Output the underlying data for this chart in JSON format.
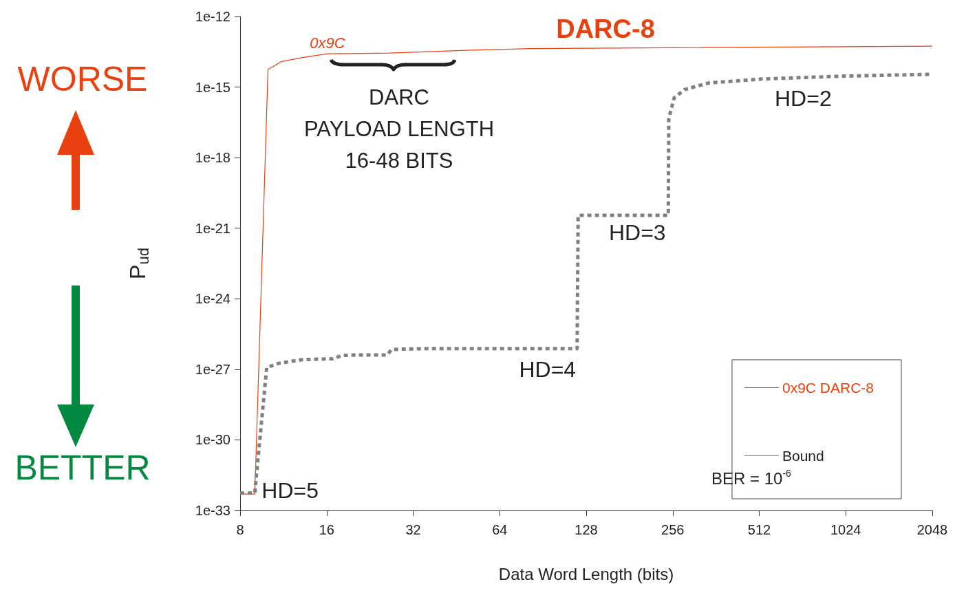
{
  "chart_data": {
    "type": "line",
    "xlabel": "Data Word Length (bits)",
    "ylabel": "P$_{ud}$",
    "x": [
      8,
      9,
      10,
      11.1,
      13.2,
      16.1,
      26.6,
      50.9,
      81,
      2048
    ],
    "log": "xy",
    "xlim": [
      8,
      2048
    ],
    "xticks": [
      8,
      16,
      32,
      64,
      128,
      256,
      512,
      1024,
      2048
    ],
    "ylim": [
      1e-33,
      1e-12
    ],
    "yticks": [
      {
        "value": 1e-33,
        "label": "1e-33"
      },
      {
        "value": 1e-30,
        "label": "1e-30"
      },
      {
        "value": 1e-27,
        "label": "1e-27"
      },
      {
        "value": 1e-24,
        "label": "1e-24"
      },
      {
        "value": 1e-21,
        "label": "1e-21"
      },
      {
        "value": 1e-18,
        "label": "1e-18"
      },
      {
        "value": 1e-15,
        "label": "1e-15"
      },
      {
        "value": 1e-12,
        "label": "1e-12"
      }
    ],
    "grid": false,
    "legend": "bottom right",
    "marker": "none",
    "series": [
      {
        "name": "0x9C DARC-8",
        "color": "#e8400e",
        "line_style": "solid",
        "values": [
          5e-33,
          5e-33,
          5.6e-15,
          1.2e-14,
          1.8e-14,
          2.6e-14,
          2.8e-14,
          3.7e-14,
          4.3e-14,
          5.5e-14
        ]
      },
      {
        "name": "Bound",
        "color": "#808080",
        "line_style": "dashed",
        "x": [
          8,
          9,
          9.1,
          9.9,
          10.9,
          13.2,
          16.8,
          18.1,
          20.8,
          26,
          26.9,
          36,
          119,
          120,
          247,
          248,
          259,
          282,
          342,
          523,
          983,
          2048
        ],
        "values": [
          5.5e-33,
          5.5e-33,
          2.5e-32,
          1.2e-27,
          1.8e-27,
          2.6e-27,
          2.8e-27,
          3.9e-27,
          4.1e-27,
          4.1e-27,
          7e-27,
          7.6e-27,
          7.6e-27,
          3.5e-21,
          3.5e-21,
          4.7e-17,
          3.5e-16,
          7.9e-16,
          1.5e-15,
          2.2e-15,
          2.9e-15,
          3.5e-15
        ]
      }
    ],
    "annotations": [
      "DARC-8",
      {
        "text": "0x9C",
        "x": 16.1,
        "y": 2.6e-14
      },
      "DARC\nPAYLOAD LENGTH\n16-48 BITS",
      {
        "text": "HD=5",
        "x": 9,
        "y": 5.5e-33
      },
      {
        "text": "HD=4",
        "x": 119,
        "y": 7.6e-27
      },
      {
        "text": "HD=3",
        "x": 247,
        "y": 3.5e-21
      },
      {
        "text": "HD=2",
        "x": 523,
        "y": 2.2e-15
      },
      "WORSE",
      "BETTER",
      "BER = 10$^{-6}$"
    ]
  }
}
